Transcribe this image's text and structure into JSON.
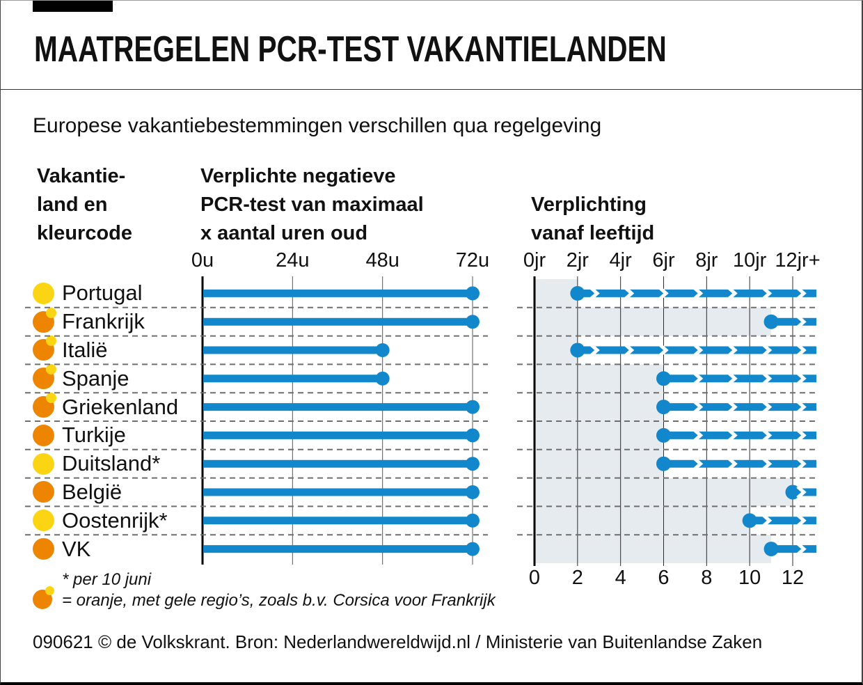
{
  "header": {
    "title": "MAATREGELEN PCR-TEST VAKANTIELANDEN",
    "subtitle": "Europese vakantiebestemmingen verschillen qua regelgeving"
  },
  "columns": {
    "country": "Vakantie-\nland en\nkleurcode",
    "pcr": "Verplichte negatieve\nPCR-test van maximaal\nx aantal uren oud",
    "age": "Verplichting\nvanaf leeftijd"
  },
  "chart_data": {
    "type": "bar",
    "categories": [
      "Portugal",
      "Frankrijk",
      "Italië",
      "Spanje",
      "Griekenland",
      "Turkije",
      "Duitsland*",
      "België",
      "Oostenrijk*",
      "VK"
    ],
    "color_codes": [
      "geel",
      "oranje-met-geel",
      "oranje-met-geel",
      "oranje-met-geel",
      "oranje-met-geel",
      "oranje",
      "geel",
      "oranje",
      "geel",
      "oranje"
    ],
    "series": [
      {
        "name": "Verplichte negatieve PCR-test van maximaal x aantal uren oud",
        "unit": "uur",
        "values": [
          72,
          72,
          48,
          48,
          72,
          72,
          72,
          72,
          72,
          72
        ],
        "xlim": [
          0,
          72
        ],
        "tick_values": [
          0,
          24,
          48,
          72
        ],
        "tick_labels": [
          "0u",
          "24u",
          "48u",
          "72u"
        ]
      },
      {
        "name": "Verplichting vanaf leeftijd",
        "unit": "jaar",
        "values": [
          2,
          11,
          2,
          6,
          6,
          6,
          6,
          12,
          10,
          11
        ],
        "xlim": [
          0,
          13
        ],
        "open_ended": true,
        "tick_values": [
          0,
          2,
          4,
          6,
          8,
          10,
          12
        ],
        "tick_labels": [
          "0jr",
          "2jr",
          "4jr",
          "6jr",
          "8jr",
          "10jr",
          "12jr+"
        ],
        "bottom_tick_labels": [
          "0",
          "2",
          "4",
          "6",
          "8",
          "10",
          "12"
        ]
      }
    ]
  },
  "footnotes": {
    "asterisk": "*  per 10 juni",
    "colorcode": "= oranje, met gele regio’s, zoals b.v. Corsica voor Frankrijk"
  },
  "credit": "090621 © de Volkskrant. Bron: Nederlandwereldwijd.nl / Ministerie van Buitenlandse Zaken",
  "colors": {
    "bar_blue": "#1287cb",
    "code_yellow": "#fbd514",
    "code_orange": "#ed8500",
    "shade": "#e6ebef",
    "grid_gray": "#555555",
    "grid_dark": "#2b2b2b",
    "dash": "#6e6e6e",
    "axis_black": "#000000",
    "text": "#111111"
  }
}
